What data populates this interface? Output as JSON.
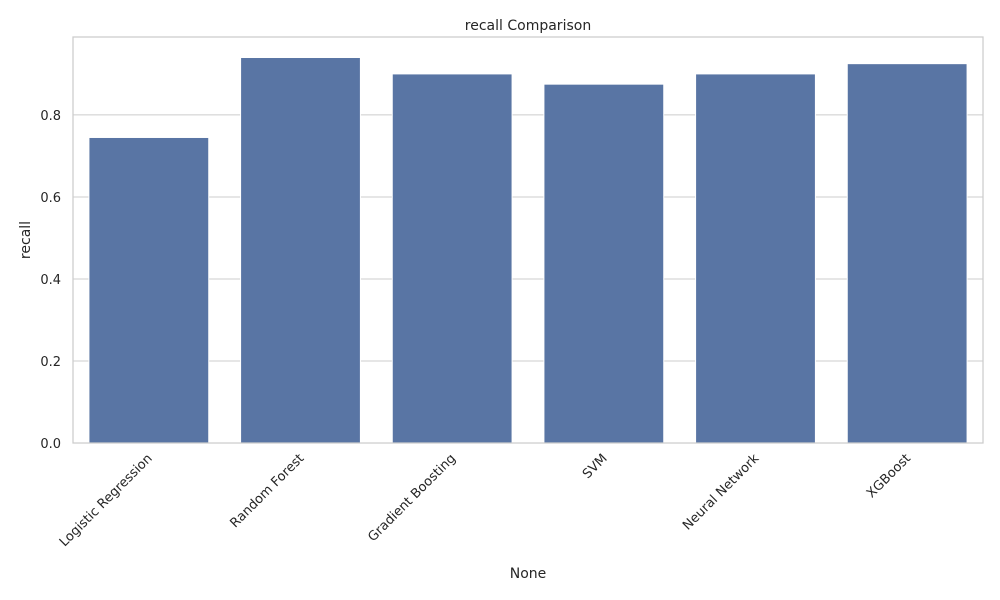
{
  "chart_data": {
    "type": "bar",
    "title": "recall Comparison",
    "xlabel": "None",
    "ylabel": "recall",
    "categories": [
      "Logistic Regression",
      "Random Forest",
      "Gradient Boosting",
      "SVM",
      "Neural Network",
      "XGBoost"
    ],
    "values": [
      0.745,
      0.94,
      0.9,
      0.875,
      0.9,
      0.925
    ],
    "ylim": [
      0,
      0.99
    ],
    "yticks": [
      0.0,
      0.2,
      0.4,
      0.6,
      0.8
    ],
    "ytick_labels": [
      "0.0",
      "0.2",
      "0.4",
      "0.6",
      "0.8"
    ],
    "grid": "horizontal",
    "bar_color": "#5975a4",
    "grid_color": "#cccccc",
    "spine_color": "#cccccc"
  }
}
